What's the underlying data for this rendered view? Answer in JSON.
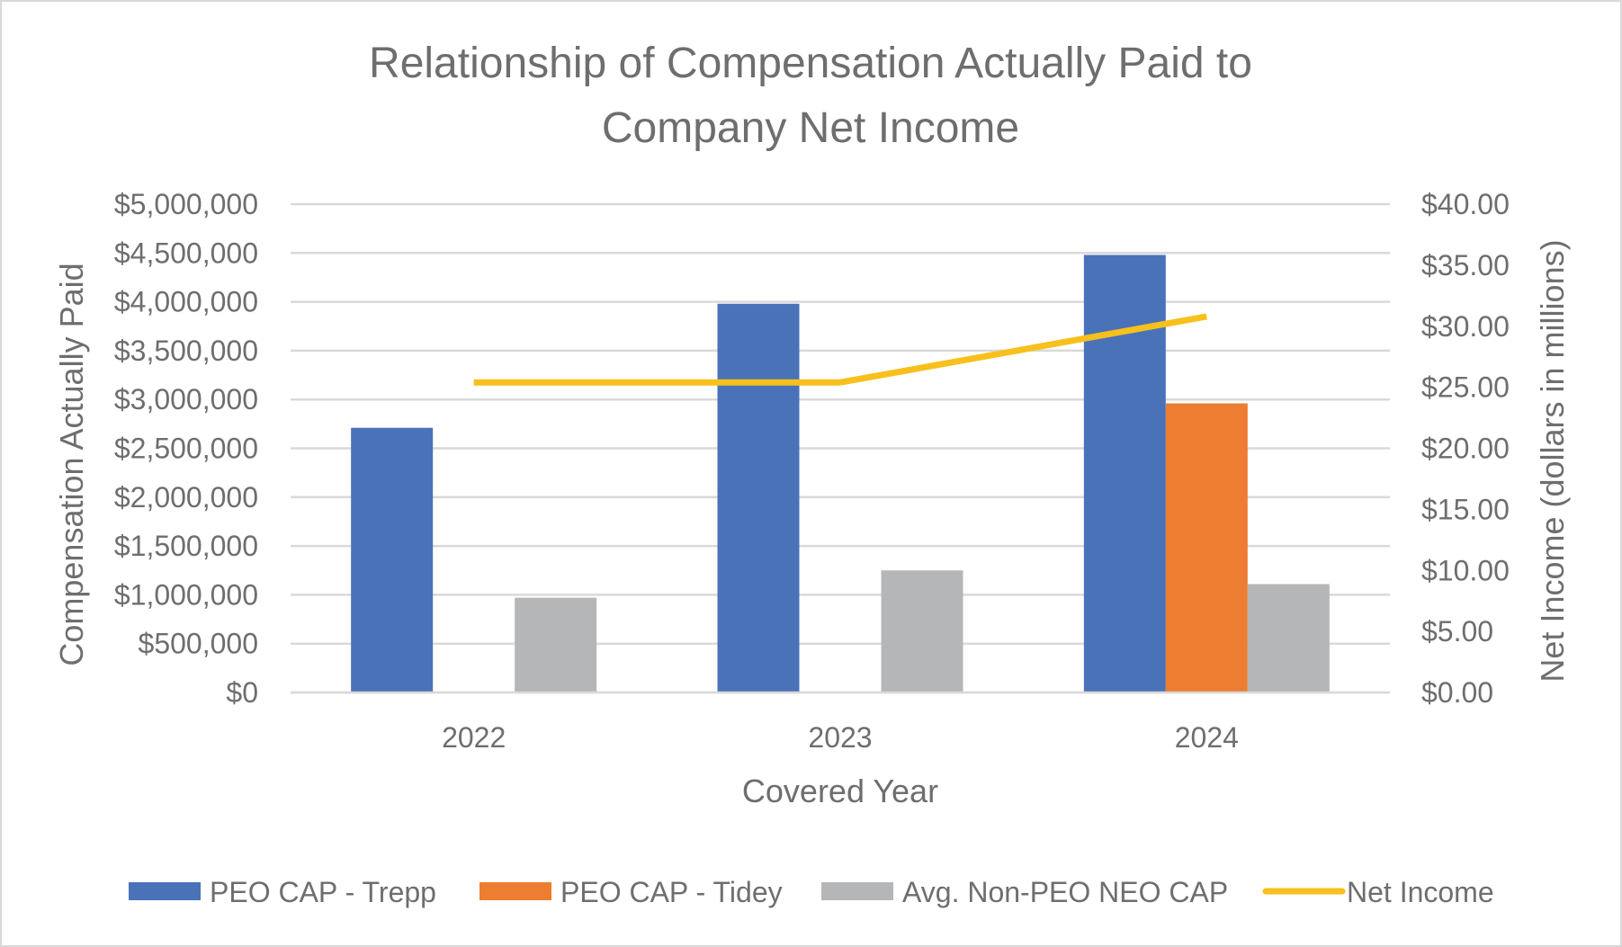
{
  "chart_data": {
    "type": "bar",
    "title_lines": [
      "Relationship of Compensation Actually Paid to",
      "Company Net Income"
    ],
    "xlabel": "Covered Year",
    "ylabel": "Compensation Actually Paid",
    "y2label": "Net Income (dollars in millions)",
    "categories": [
      "2022",
      "2023",
      "2024"
    ],
    "ylim": [
      0,
      5000000
    ],
    "y2lim": [
      0,
      40
    ],
    "y_ticks": [
      "$0",
      "$500,000",
      "$1,000,000",
      "$1,500,000",
      "$2,000,000",
      "$2,500,000",
      "$3,000,000",
      "$3,500,000",
      "$4,000,000",
      "$4,500,000",
      "$5,000,000"
    ],
    "y2_ticks": [
      "$0.00",
      "$5.00",
      "$10.00",
      "$15.00",
      "$20.00",
      "$25.00",
      "$30.00",
      "$35.00",
      "$40.00"
    ],
    "grid": true,
    "legend_position": "bottom",
    "series": [
      {
        "name": "PEO CAP - Trepp",
        "type": "bar",
        "axis": "left",
        "color": "#4a72b8",
        "values": [
          2710000,
          3980000,
          4480000
        ]
      },
      {
        "name": "PEO CAP - Tidey",
        "type": "bar",
        "axis": "left",
        "color": "#ed7d31",
        "values": [
          null,
          null,
          2960000
        ]
      },
      {
        "name": "Avg. Non-PEO NEO CAP",
        "type": "bar",
        "axis": "left",
        "color": "#b5b6b7",
        "values": [
          970000,
          1250000,
          1110000
        ]
      },
      {
        "name": "Net Income",
        "type": "line",
        "axis": "right",
        "color": "#f7c01c",
        "values": [
          25.4,
          25.4,
          30.8
        ]
      }
    ]
  },
  "colors": {
    "text": "#6e6e6e",
    "grid": "#d9d9d9"
  }
}
